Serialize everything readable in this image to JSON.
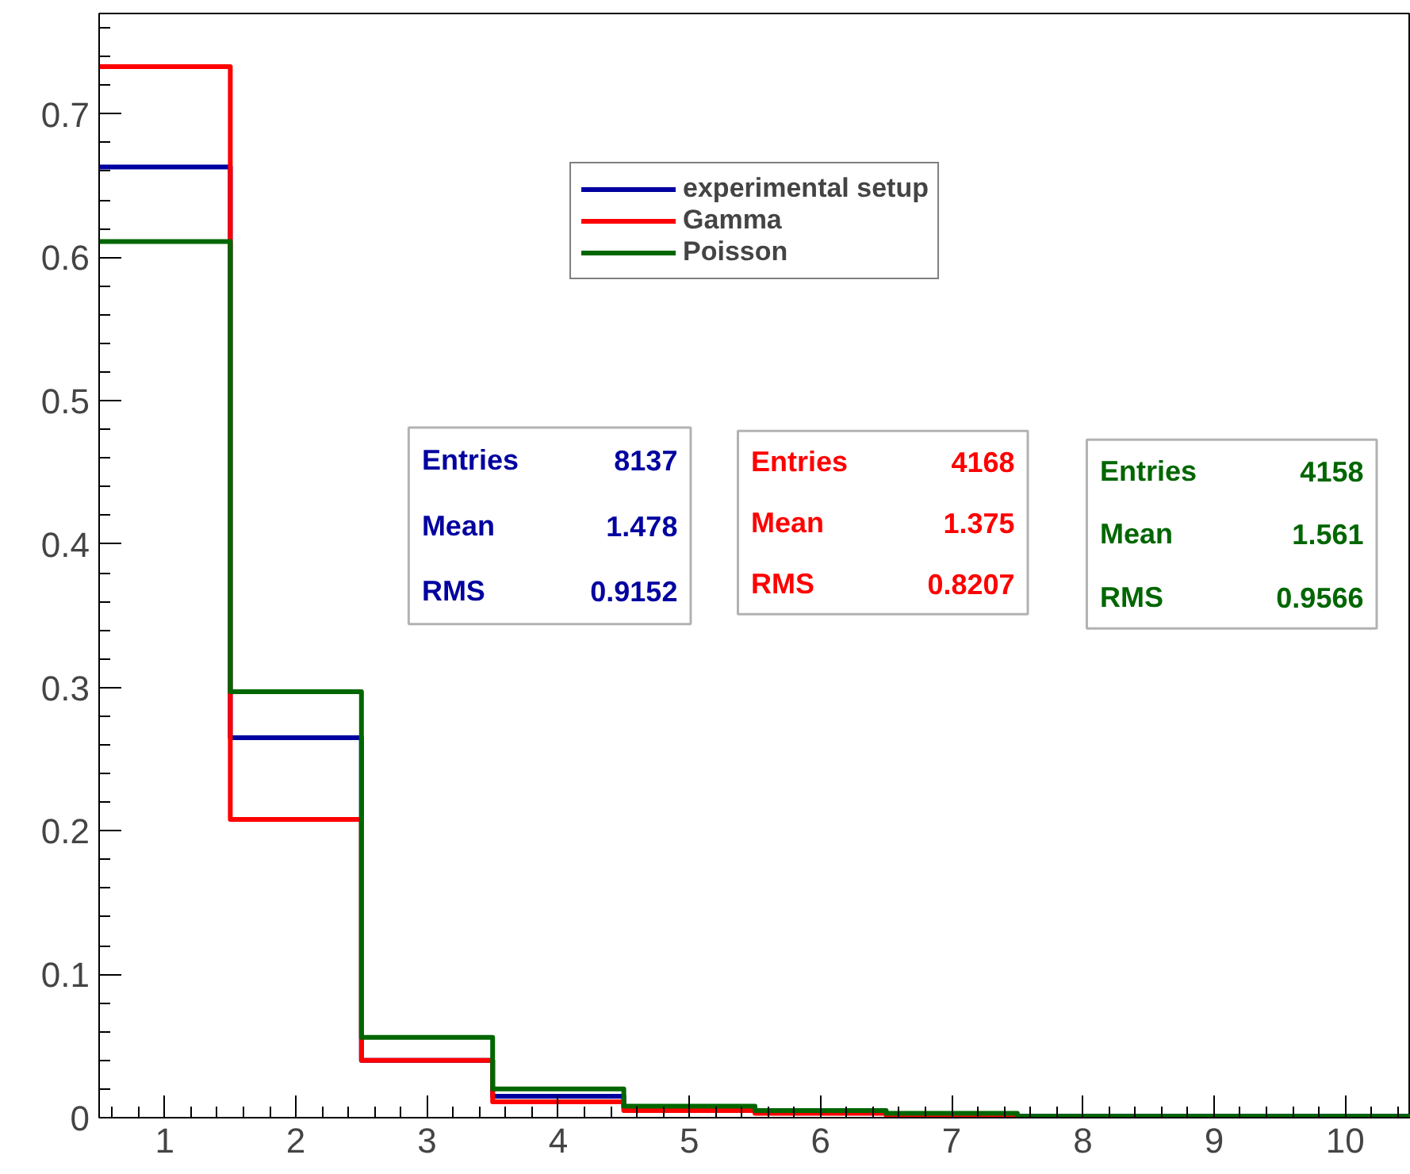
{
  "chart_data": {
    "type": "histogram",
    "bins": [
      0.5,
      1.5,
      2.5,
      3.5,
      4.5,
      5.5,
      6.5,
      7.5,
      8.5,
      9.5,
      10.5
    ],
    "series": [
      {
        "name": "experimental setup",
        "color": "#0000a0",
        "values": [
          0.663,
          0.265,
          0.04,
          0.015,
          0.007,
          0.004,
          0.002,
          0.001,
          0.001,
          0.001
        ]
      },
      {
        "name": "Gamma",
        "color": "#ff0000",
        "values": [
          0.733,
          0.208,
          0.04,
          0.011,
          0.005,
          0.003,
          0.002,
          0.0,
          0.0,
          0.0
        ]
      },
      {
        "name": "Poisson",
        "color": "#006600",
        "values": [
          0.611,
          0.297,
          0.056,
          0.02,
          0.008,
          0.005,
          0.003,
          0.001,
          0.001,
          0.001
        ]
      }
    ],
    "xlim": [
      0.5,
      10.5
    ],
    "ylim": [
      0,
      0.77
    ],
    "xticks": [
      1,
      2,
      3,
      4,
      5,
      6,
      7,
      8,
      9,
      10
    ],
    "yticks": [
      0,
      0.1,
      0.2,
      0.3,
      0.4,
      0.5,
      0.6,
      0.7
    ],
    "grid": false,
    "legend": "top",
    "annotations": [
      "Entries 8137",
      "Mean 1.478",
      "RMS 0.9152",
      "Entries 4168",
      "Mean 1.375",
      "RMS 0.8207",
      "Entries 4158",
      "Mean 1.561",
      "RMS 0.9566"
    ]
  }
}
